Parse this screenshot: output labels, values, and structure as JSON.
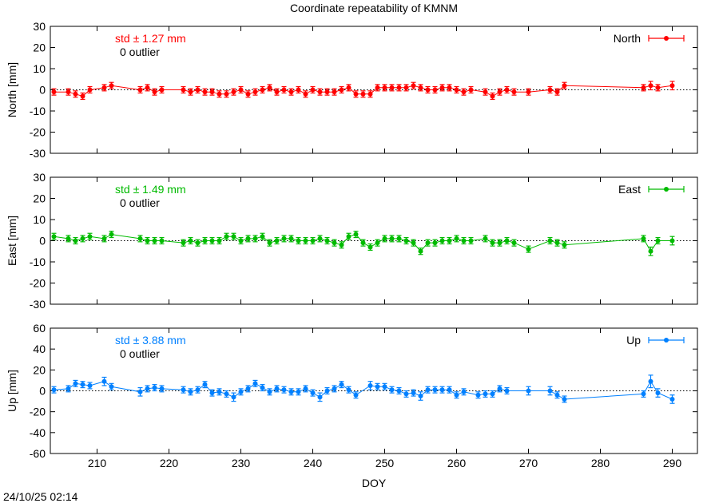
{
  "page": {
    "title": "Coordinate repeatability of KMNM",
    "timestamp": "24/10/25 02:14"
  },
  "chart_data": [
    {
      "type": "line",
      "component": "North",
      "title": "Coordinate repeatability of KMNM",
      "xlabel": "",
      "ylabel": "North [mm]",
      "xlim": [
        203.5,
        293.5
      ],
      "ylim": [
        -30,
        30
      ],
      "yticks": [
        30,
        20,
        10,
        0,
        -10,
        -20,
        -30
      ],
      "color": "#ff0000",
      "std_label": "std ± 1.27 mm",
      "outlier_label": "0 outlier",
      "legend": "North",
      "legend_position": "top-right",
      "zero_line": true,
      "series": [
        {
          "name": "North",
          "x": [
            204,
            206,
            207,
            208,
            209,
            211,
            212,
            216,
            217,
            218,
            219,
            222,
            223,
            224,
            225,
            226,
            227,
            228,
            229,
            230,
            231,
            232,
            233,
            234,
            235,
            236,
            237,
            238,
            239,
            240,
            241,
            242,
            243,
            244,
            245,
            246,
            247,
            248,
            249,
            250,
            251,
            252,
            253,
            254,
            255,
            256,
            257,
            258,
            259,
            260,
            261,
            262,
            264,
            265,
            266,
            267,
            268,
            270,
            273,
            274,
            275,
            286,
            287,
            288,
            290
          ],
          "y": [
            -1,
            -1,
            -2,
            -3,
            0,
            1,
            2,
            0,
            1,
            -1,
            0,
            0,
            -1,
            0,
            -1,
            -1,
            -2,
            -2,
            -1,
            0,
            -2,
            -1,
            0,
            1,
            -1,
            0,
            -1,
            0,
            -2,
            0,
            -1,
            -1,
            -1,
            0,
            1,
            -2,
            -2,
            -2,
            1,
            1,
            1,
            1,
            1,
            2,
            1,
            0,
            0,
            1,
            1,
            0,
            -1,
            0,
            -1,
            -3,
            -1,
            0,
            -1,
            -1,
            0,
            -1,
            2,
            1,
            2,
            1,
            2
          ],
          "yerr": [
            1.5,
            1.5,
            1.5,
            1.5,
            1.5,
            1.5,
            1.5,
            1.5,
            1.5,
            1.5,
            1.5,
            1.5,
            1.5,
            1.5,
            1.5,
            1.5,
            1.5,
            1.5,
            1.5,
            1.5,
            1.5,
            1.5,
            1.5,
            1.5,
            1.5,
            1.5,
            1.5,
            1.5,
            1.5,
            1.5,
            1.5,
            1.5,
            1.5,
            1.5,
            1.5,
            1.5,
            1.5,
            1.5,
            1.5,
            1.5,
            1.5,
            1.5,
            1.5,
            1.5,
            1.5,
            1.5,
            1.5,
            1.5,
            1.5,
            1.5,
            1.5,
            1.5,
            1.5,
            1.5,
            1.5,
            1.5,
            1.5,
            1.5,
            1.5,
            1.5,
            1.5,
            1.5,
            2,
            1.5,
            2
          ]
        }
      ]
    },
    {
      "type": "line",
      "component": "East",
      "xlabel": "",
      "ylabel": "East [mm]",
      "xlim": [
        203.5,
        293.5
      ],
      "ylim": [
        -30,
        30
      ],
      "yticks": [
        30,
        20,
        10,
        0,
        -10,
        -20,
        -30
      ],
      "color": "#00bb00",
      "std_label": "std ± 1.49 mm",
      "outlier_label": "0 outlier",
      "legend": "East",
      "legend_position": "top-right",
      "zero_line": true,
      "series": [
        {
          "name": "East",
          "x": [
            204,
            206,
            207,
            208,
            209,
            211,
            212,
            216,
            217,
            218,
            219,
            222,
            223,
            224,
            225,
            226,
            227,
            228,
            229,
            230,
            231,
            232,
            233,
            234,
            235,
            236,
            237,
            238,
            239,
            240,
            241,
            242,
            243,
            244,
            245,
            246,
            247,
            248,
            249,
            250,
            251,
            252,
            253,
            254,
            255,
            256,
            257,
            258,
            259,
            260,
            261,
            262,
            264,
            265,
            266,
            267,
            268,
            270,
            273,
            274,
            275,
            286,
            287,
            288,
            290
          ],
          "y": [
            2,
            1,
            0,
            1,
            2,
            1,
            3,
            1,
            0,
            0,
            0,
            -1,
            0,
            -1,
            0,
            0,
            0,
            2,
            2,
            0,
            1,
            1,
            2,
            -1,
            0,
            1,
            1,
            0,
            0,
            0,
            1,
            0,
            -1,
            -2,
            2,
            3,
            -1,
            -3,
            -1,
            1,
            1,
            1,
            0,
            -1,
            -5,
            -1,
            -1,
            0,
            0,
            1,
            0,
            0,
            1,
            -1,
            -1,
            0,
            -1,
            -4,
            0,
            -1,
            -2,
            1,
            -5,
            0,
            0
          ],
          "yerr": [
            1.5,
            1.5,
            1.5,
            1.5,
            1.5,
            1.5,
            1.5,
            1.5,
            1.5,
            1.5,
            1.5,
            1.5,
            1.5,
            1.5,
            1.5,
            1.5,
            1.5,
            1.5,
            1.5,
            1.5,
            1.5,
            1.5,
            1.5,
            1.5,
            1.5,
            1.5,
            1.5,
            1.5,
            1.5,
            1.5,
            1.5,
            1.5,
            1.5,
            1.5,
            1.5,
            1.5,
            1.5,
            1.5,
            1.5,
            1.5,
            1.5,
            1.5,
            1.5,
            1.5,
            1.5,
            1.5,
            1.5,
            1.5,
            1.5,
            1.5,
            1.5,
            1.5,
            1.5,
            1.5,
            1.5,
            1.5,
            1.5,
            1.5,
            1.5,
            1.5,
            1.5,
            1.5,
            2,
            1.5,
            2
          ]
        }
      ]
    },
    {
      "type": "line",
      "component": "Up",
      "xlabel": "DOY",
      "ylabel": "Up [mm]",
      "xlim": [
        203.5,
        293.5
      ],
      "xticks": [
        210,
        220,
        230,
        240,
        250,
        260,
        270,
        280,
        290
      ],
      "ylim": [
        -60,
        60
      ],
      "yticks": [
        60,
        40,
        20,
        0,
        -20,
        -40,
        -60
      ],
      "color": "#0080ff",
      "std_label": "std ± 3.88 mm",
      "outlier_label": "0 outlier",
      "legend": "Up",
      "legend_position": "top-right",
      "zero_line": true,
      "series": [
        {
          "name": "Up",
          "x": [
            204,
            206,
            207,
            208,
            209,
            211,
            212,
            216,
            217,
            218,
            219,
            222,
            223,
            224,
            225,
            226,
            227,
            228,
            229,
            230,
            231,
            232,
            233,
            234,
            235,
            236,
            237,
            238,
            239,
            240,
            241,
            242,
            243,
            244,
            245,
            246,
            248,
            249,
            250,
            251,
            252,
            253,
            254,
            255,
            256,
            257,
            258,
            259,
            260,
            261,
            263,
            264,
            265,
            266,
            267,
            270,
            273,
            274,
            275,
            286,
            287,
            288,
            290
          ],
          "y": [
            1,
            2,
            7,
            6,
            5,
            9,
            4,
            -1,
            2,
            3,
            2,
            1,
            -1,
            1,
            6,
            -2,
            -1,
            -3,
            -6,
            -1,
            2,
            7,
            3,
            -1,
            2,
            1,
            -1,
            -1,
            2,
            -2,
            -6,
            0,
            2,
            6,
            1,
            -4,
            5,
            4,
            4,
            1,
            0,
            -3,
            -2,
            -5,
            1,
            1,
            1,
            1,
            -4,
            -1,
            -4,
            -3,
            -3,
            2,
            0,
            0,
            0,
            -4,
            -8,
            -3,
            9,
            -2,
            -8
          ],
          "yerr": [
            3,
            3,
            3,
            3,
            3,
            4,
            3,
            4,
            3,
            3,
            3,
            3,
            3,
            3,
            3,
            3,
            3,
            3,
            4,
            3,
            3,
            3,
            3,
            3,
            3,
            3,
            3,
            3,
            3,
            3,
            4,
            3,
            3,
            3,
            3,
            3,
            4,
            3,
            3,
            3,
            3,
            3,
            3,
            4,
            3,
            3,
            3,
            3,
            3,
            3,
            3,
            3,
            3,
            3,
            3,
            4,
            4,
            3,
            3,
            3,
            6,
            4,
            4
          ]
        }
      ]
    }
  ]
}
